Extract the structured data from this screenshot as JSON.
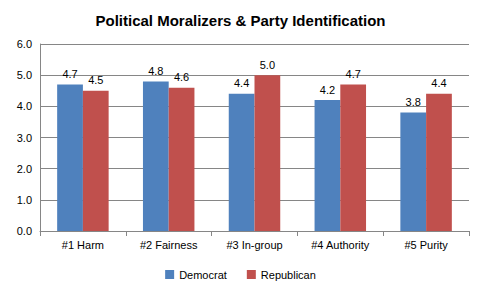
{
  "chart_data": {
    "type": "bar",
    "title": "Political Moralizers & Party Identification",
    "categories": [
      "#1 Harm",
      "#2 Fairness",
      "#3 In-group",
      "#4 Authority",
      "#5 Purity"
    ],
    "series": [
      {
        "name": "Democrat",
        "color": "#4f81bd",
        "values": [
          4.7,
          4.8,
          4.4,
          4.2,
          3.8
        ],
        "value_labels": [
          "4.7",
          "4.8",
          "4.4",
          "4.2",
          "3.8"
        ]
      },
      {
        "name": "Republican",
        "color": "#c0504d",
        "values": [
          4.5,
          4.6,
          5.0,
          4.7,
          4.4
        ],
        "value_labels": [
          "4.5",
          "4.6",
          "5.0",
          "4.7",
          "4.4"
        ]
      }
    ],
    "ylim": [
      0,
      6
    ],
    "yticks": [
      {
        "value": 0,
        "label": "0.0"
      },
      {
        "value": 1,
        "label": "1.0"
      },
      {
        "value": 2,
        "label": "2.0"
      },
      {
        "value": 3,
        "label": "3.0"
      },
      {
        "value": 4,
        "label": "4.0"
      },
      {
        "value": 5,
        "label": "5.0"
      },
      {
        "value": 6,
        "label": "6.0"
      }
    ],
    "grid": true,
    "legend": "bottom",
    "data_labels": true
  }
}
